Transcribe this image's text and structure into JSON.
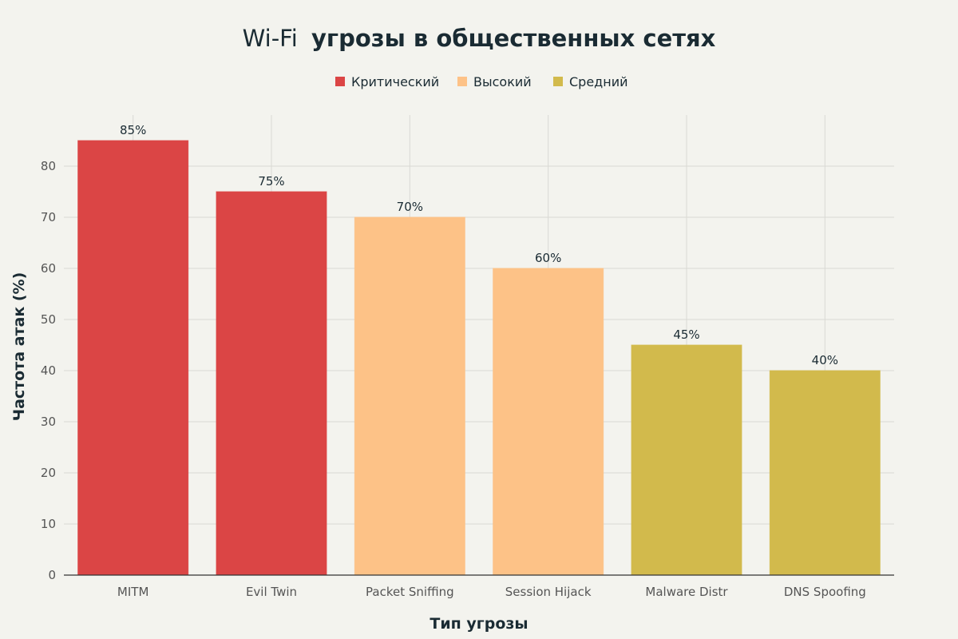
{
  "chart_data": {
    "type": "bar",
    "title_prefix": "Wi-Fi",
    "title_main": "угрозы в общественных сетях",
    "xlabel": "Тип угрозы",
    "ylabel": "Частота атак (%)",
    "ylim": [
      0,
      90
    ],
    "yticks": [
      0,
      10,
      20,
      30,
      40,
      50,
      60,
      70,
      80
    ],
    "grid": true,
    "legend_position": "top-center",
    "categories": [
      "MITM",
      "Evil Twin",
      "Packet Sniffing",
      "Session Hijack",
      "Malware Distr",
      "DNS Spoofing"
    ],
    "values": [
      85,
      75,
      70,
      60,
      45,
      40
    ],
    "value_labels": [
      "85%",
      "75%",
      "70%",
      "60%",
      "45%",
      "40%"
    ],
    "levels": [
      "critical",
      "critical",
      "high",
      "high",
      "medium",
      "medium"
    ],
    "legend": [
      {
        "key": "critical",
        "label": "Критический",
        "color": "#db4545"
      },
      {
        "key": "high",
        "label": "Высокий",
        "color": "#fdc287"
      },
      {
        "key": "medium",
        "label": "Средний",
        "color": "#d2ba4c"
      }
    ],
    "colors": {
      "text": "#1a2b33",
      "tick_text": "#555555",
      "grid": "#d9d9d4",
      "axis": "#333333"
    }
  }
}
